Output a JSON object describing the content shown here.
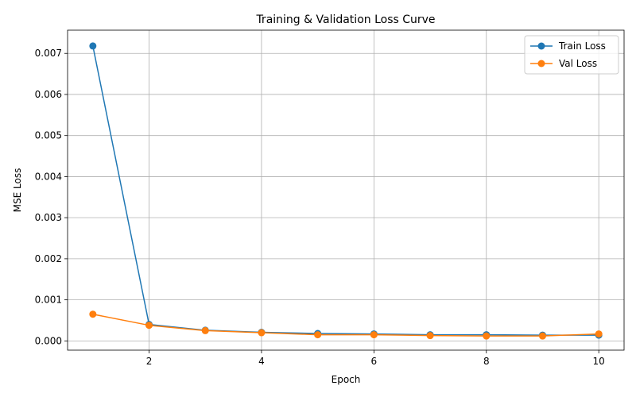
{
  "chart_data": {
    "type": "line",
    "title": "Training & Validation Loss Curve",
    "xlabel": "Epoch",
    "ylabel": "MSE Loss",
    "x": [
      1,
      2,
      3,
      4,
      5,
      6,
      7,
      8,
      9,
      10
    ],
    "xlim": [
      0.55,
      10.45
    ],
    "ylim": [
      -0.000225,
      0.007565
    ],
    "xticks": [
      2,
      4,
      6,
      8,
      10
    ],
    "xtick_labels": [
      "2",
      "4",
      "6",
      "8",
      "10"
    ],
    "yticks": [
      0.0,
      0.001,
      0.002,
      0.003,
      0.004,
      0.005,
      0.006,
      0.007
    ],
    "ytick_labels": [
      "0.000",
      "0.001",
      "0.002",
      "0.003",
      "0.004",
      "0.005",
      "0.006",
      "0.007"
    ],
    "grid": true,
    "legend_position": "top-right",
    "series": [
      {
        "name": "Train Loss",
        "color": "#1f77b4",
        "values": [
          0.00718,
          0.0004,
          0.00026,
          0.00021,
          0.00018,
          0.00017,
          0.00015,
          0.00015,
          0.00014,
          0.00014
        ]
      },
      {
        "name": "Val Loss",
        "color": "#ff7f0e",
        "values": [
          0.00065,
          0.00038,
          0.00025,
          0.0002,
          0.00015,
          0.00015,
          0.00013,
          0.00012,
          0.00012,
          0.00017
        ]
      }
    ]
  }
}
